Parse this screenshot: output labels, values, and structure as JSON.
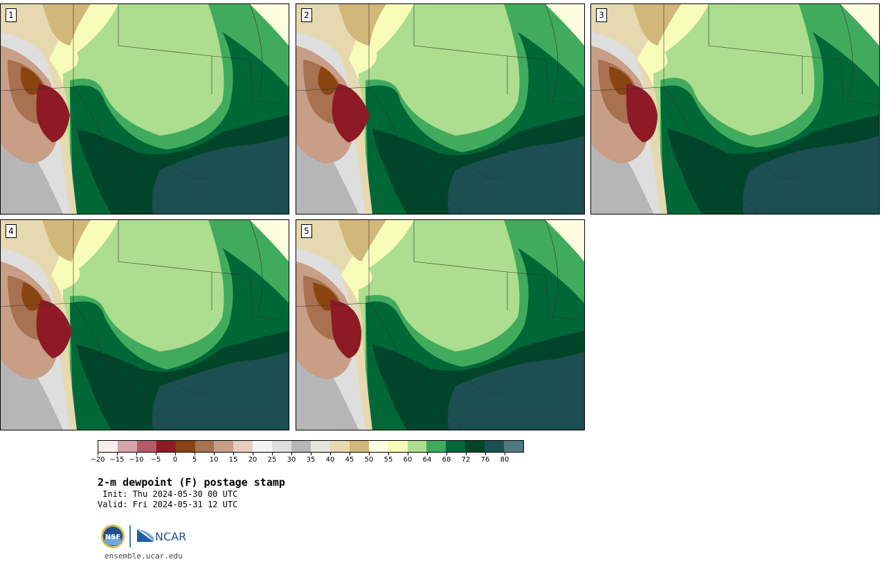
{
  "figure": {
    "title": "2-m dewpoint (F) postage stamp",
    "init": " Init: Thu 2024-05-30 00 UTC",
    "valid": "Valid: Fri 2024-05-31 12 UTC"
  },
  "panels": [
    {
      "label": "1"
    },
    {
      "label": "2"
    },
    {
      "label": "3"
    },
    {
      "label": "4"
    },
    {
      "label": "5"
    }
  ],
  "colorbar": {
    "ticks": [
      "−20",
      "−15",
      "−10",
      "−5",
      "0",
      "5",
      "10",
      "15",
      "20",
      "25",
      "30",
      "35",
      "40",
      "45",
      "50",
      "55",
      "60",
      "64",
      "68",
      "72",
      "76",
      "80"
    ],
    "colors": [
      "#fbeeee",
      "#d6a3a8",
      "#b45c66",
      "#8e1a26",
      "#8a4412",
      "#a8714f",
      "#c89e86",
      "#e8cdbd",
      "#f4f4f4",
      "#dedede",
      "#b6b6b6",
      "#e4e4d8",
      "#e6d9b0",
      "#d2b77a",
      "#fffde0",
      "#f7fcb9",
      "#addd8e",
      "#41ab5d",
      "#006837",
      "#004529",
      "#1b4f52",
      "#4f7a80"
    ]
  },
  "brand": {
    "nsf": "NSF",
    "ncar": "NCAR",
    "site": "ensemble.ucar.edu"
  },
  "palette": {
    "dark_teal": "#1b4f52",
    "very_dark_green": "#004529",
    "dark_green": "#006837",
    "mid_green": "#41ab5d",
    "light_green": "#addd8e",
    "pale_yellow": "#f7fcb9",
    "cream": "#fffde0",
    "tan": "#d2b77a",
    "light_tan": "#e6d9b0",
    "gray": "#b6b6b6",
    "light_gray": "#dedede",
    "brown_light": "#c89e86",
    "brown_mid": "#a8714f",
    "brown_dark": "#8a4412",
    "red_dark": "#8e1a26"
  }
}
